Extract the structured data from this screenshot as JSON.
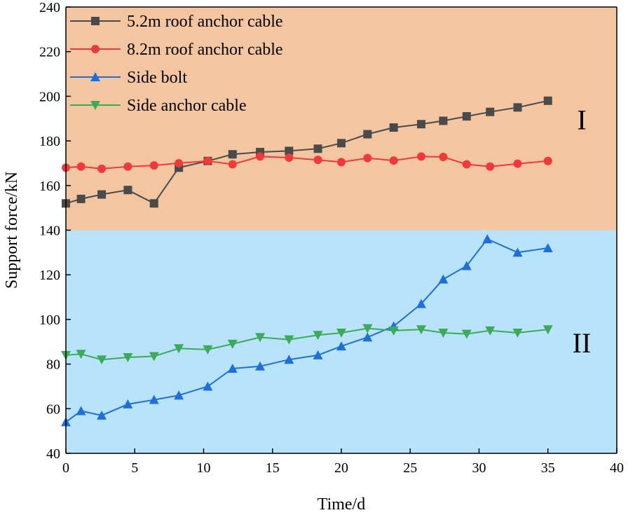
{
  "chart_data": {
    "type": "line",
    "xlabel": "Time/d",
    "ylabel": "Support force/kN",
    "xlim": [
      0,
      40
    ],
    "ylim": [
      40,
      240
    ],
    "xticks": [
      0,
      5,
      10,
      15,
      20,
      25,
      30,
      35,
      40
    ],
    "yticks": [
      40,
      60,
      80,
      100,
      120,
      140,
      160,
      180,
      200,
      220,
      240
    ],
    "grid": false,
    "legend_position": "top-left",
    "regions": [
      {
        "label": "I",
        "y_from": 140,
        "y_to": 240,
        "color": "#f4c5a1"
      },
      {
        "label": "II",
        "y_from": 40,
        "y_to": 140,
        "color": "#b9e3fb"
      }
    ],
    "series": [
      {
        "name": "5.2m roof anchor cable",
        "color": "#4a4a4a",
        "marker": "square",
        "x": [
          0,
          1.1,
          2.6,
          4.5,
          6.4,
          8.2,
          10.3,
          12.1,
          14.1,
          16.2,
          18.3,
          20,
          21.9,
          23.8,
          25.8,
          27.4,
          29.1,
          30.8,
          32.8,
          35
        ],
        "y": [
          152,
          154,
          156,
          158,
          152,
          168,
          171,
          174,
          175,
          175.5,
          176.5,
          179,
          183,
          186,
          187.5,
          189,
          191,
          193,
          195,
          198
        ]
      },
      {
        "name": "8.2m roof anchor cable",
        "color": "#f03a3a",
        "marker": "circle",
        "x": [
          0,
          1.1,
          2.6,
          4.5,
          6.4,
          8.2,
          10.3,
          12.1,
          14.1,
          16.2,
          18.3,
          20,
          21.9,
          23.8,
          25.8,
          27.4,
          29.1,
          30.8,
          32.8,
          35
        ],
        "y": [
          168,
          168.5,
          167.5,
          168.5,
          169,
          170,
          171,
          169.5,
          173,
          172.5,
          171.5,
          170.5,
          172.3,
          171.2,
          173,
          172.8,
          169.5,
          168.5,
          169.8,
          171
        ]
      },
      {
        "name": "Side bolt",
        "color": "#1f6fd8",
        "marker": "triangle-up",
        "x": [
          0,
          1.1,
          2.6,
          4.5,
          6.4,
          8.2,
          10.3,
          12.1,
          14.1,
          16.2,
          18.3,
          20,
          21.9,
          23.8,
          25.8,
          27.4,
          29.1,
          30.6,
          32.8,
          35
        ],
        "y": [
          54,
          59,
          57,
          62,
          64,
          66,
          70,
          78,
          79,
          82,
          84,
          88,
          92,
          97,
          107,
          118,
          124,
          136,
          130,
          132
        ]
      },
      {
        "name": "Side anchor cable",
        "color": "#3caa5a",
        "marker": "triangle-down",
        "x": [
          0,
          1.1,
          2.6,
          4.5,
          6.4,
          8.2,
          10.3,
          12.1,
          14.1,
          16.2,
          18.3,
          20,
          21.9,
          23.8,
          25.8,
          27.4,
          29.1,
          30.8,
          32.8,
          35
        ],
        "y": [
          84,
          84.5,
          82,
          83,
          83.5,
          87,
          86.5,
          89,
          92,
          91,
          93,
          94,
          96,
          95,
          95.5,
          94,
          93.5,
          95,
          94,
          95.5
        ]
      }
    ]
  }
}
